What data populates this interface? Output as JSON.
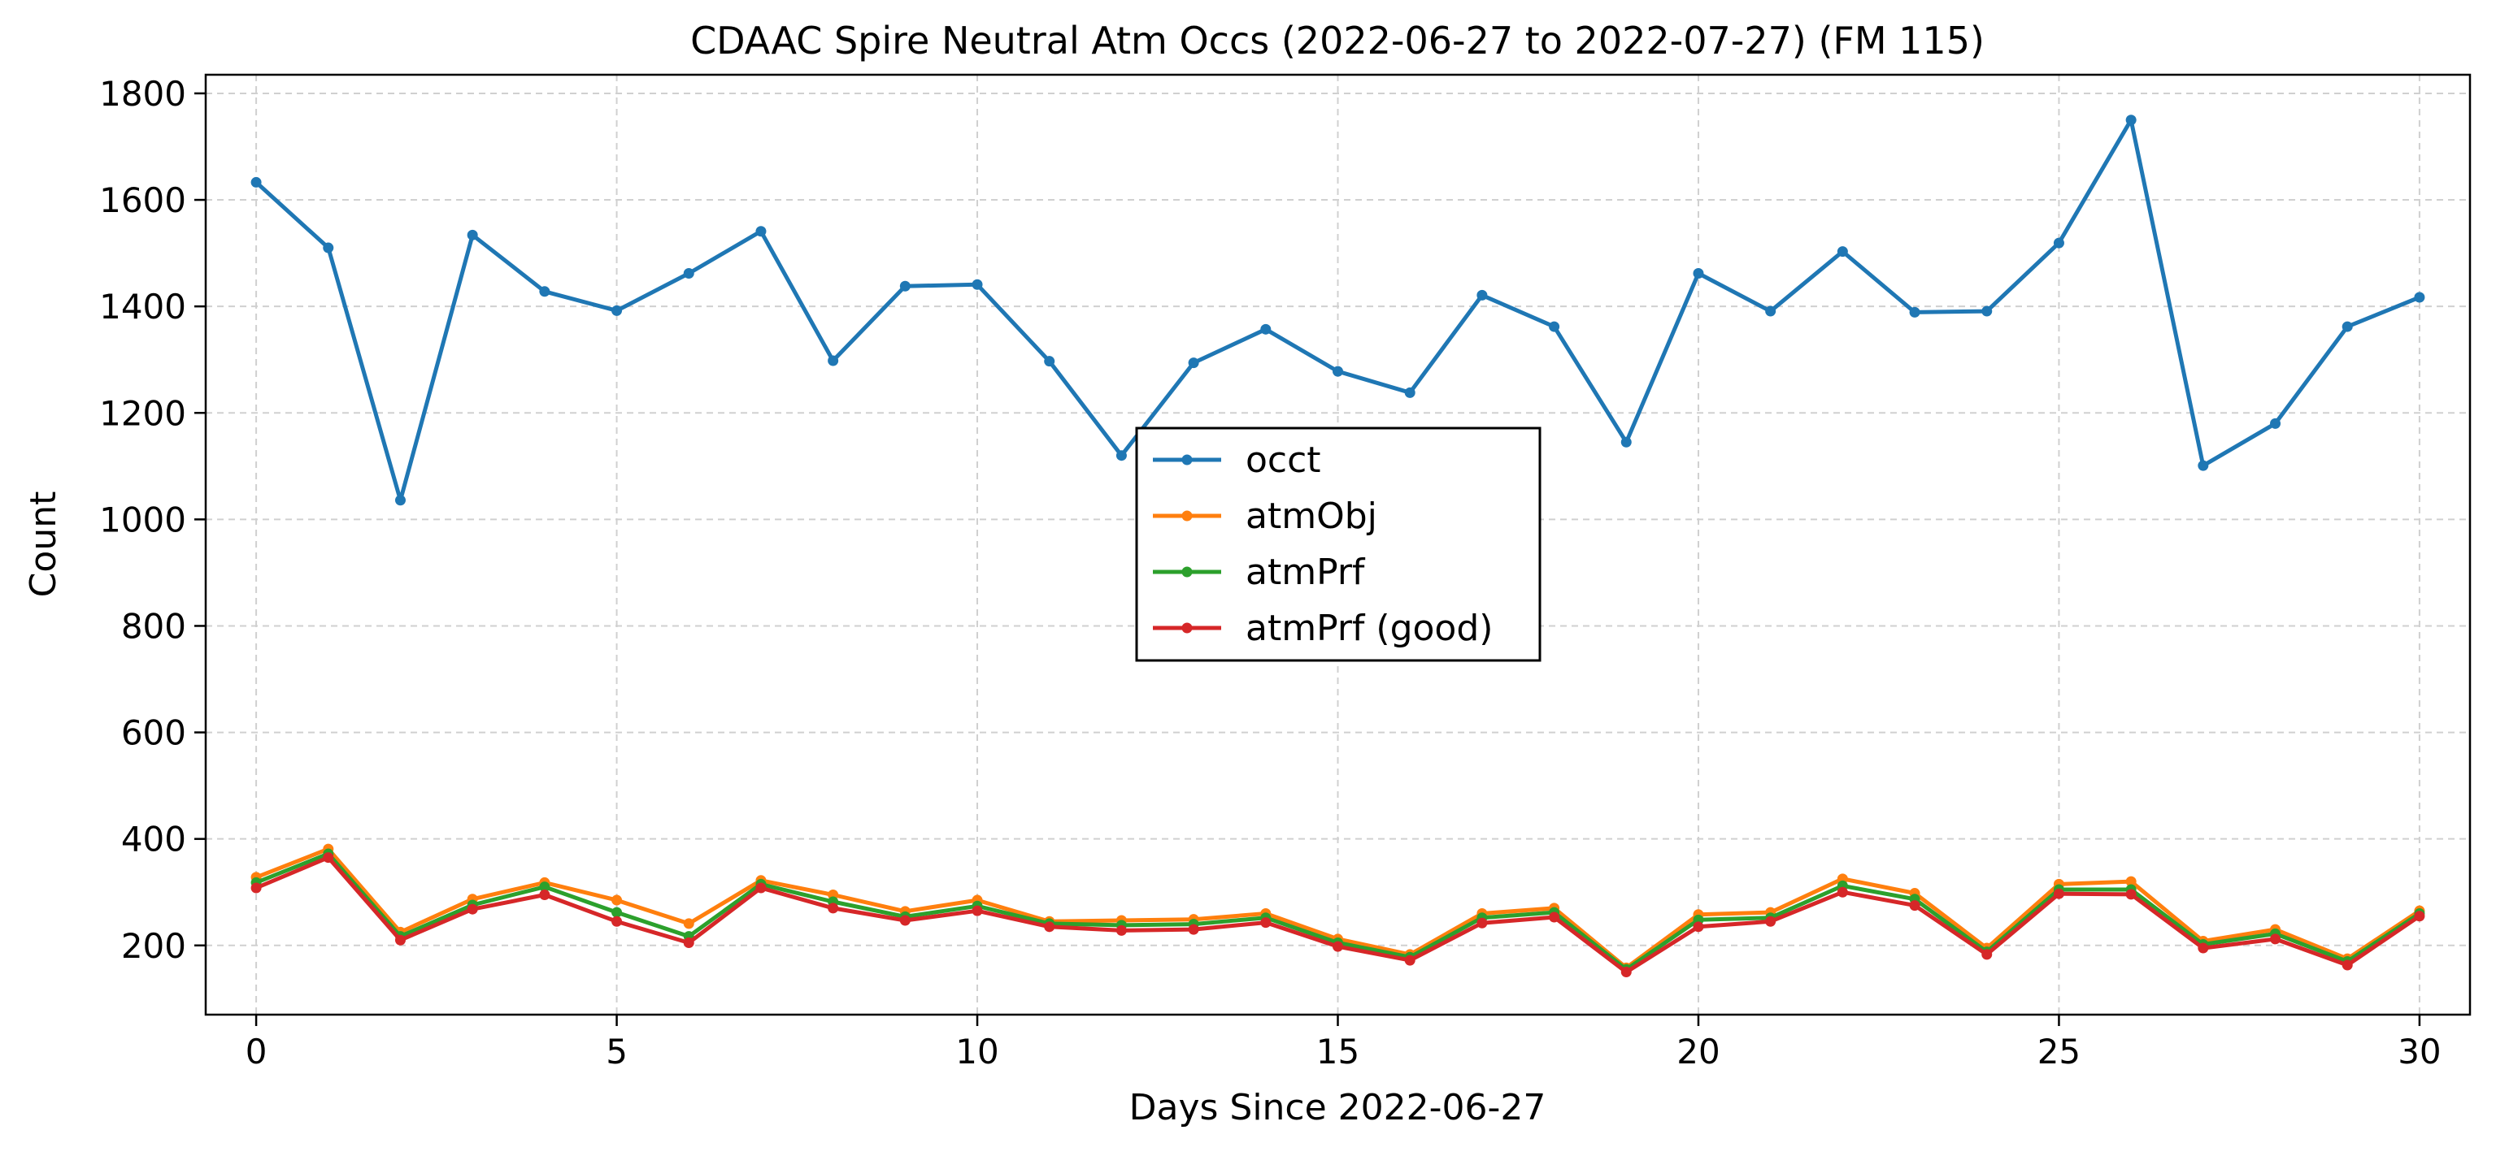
{
  "chart_data": {
    "type": "line",
    "title": "CDAAC Spire Neutral Atm Occs (2022-06-27 to 2022-07-27) (FM 115)",
    "xlabel": "Days Since 2022-06-27",
    "ylabel": "Count",
    "xlim": [
      -0.7,
      30.7
    ],
    "ylim": [
      70,
      1835
    ],
    "xticks": [
      0,
      5,
      10,
      15,
      20,
      25,
      30
    ],
    "yticks": [
      200,
      400,
      600,
      800,
      1000,
      1200,
      1400,
      1600,
      1800
    ],
    "grid": true,
    "legend_position": "center",
    "x": [
      0,
      1,
      2,
      3,
      4,
      5,
      6,
      7,
      8,
      9,
      10,
      11,
      12,
      13,
      14,
      15,
      16,
      17,
      18,
      19,
      20,
      21,
      22,
      23,
      24,
      25,
      26,
      27,
      28,
      29,
      30
    ],
    "series": [
      {
        "name": "occt",
        "color": "#1f77b4",
        "values": [
          1633,
          1510,
          1036,
          1534,
          1428,
          1392,
          1462,
          1541,
          1298,
          1438,
          1441,
          1297,
          1120,
          1294,
          1357,
          1278,
          1238,
          1421,
          1362,
          1145,
          1462,
          1391,
          1503,
          1389,
          1391,
          1519,
          1750,
          1101,
          1180,
          1362,
          1417
        ]
      },
      {
        "name": "atmObj",
        "color": "#ff7f0e",
        "values": [
          328,
          381,
          225,
          287,
          318,
          285,
          241,
          322,
          295,
          264,
          285,
          245,
          247,
          249,
          260,
          212,
          183,
          260,
          270,
          158,
          258,
          262,
          325,
          298,
          195,
          315,
          320,
          208,
          230,
          175,
          265
        ]
      },
      {
        "name": "atmPrf",
        "color": "#2ca02c",
        "values": [
          318,
          372,
          217,
          276,
          310,
          262,
          217,
          315,
          282,
          254,
          274,
          241,
          238,
          240,
          252,
          205,
          178,
          252,
          262,
          155,
          248,
          252,
          312,
          287,
          188,
          305,
          305,
          202,
          222,
          170,
          260
        ]
      },
      {
        "name": "atmPrf (good)",
        "color": "#d62728",
        "values": [
          308,
          365,
          210,
          268,
          295,
          245,
          205,
          308,
          270,
          247,
          265,
          235,
          228,
          230,
          243,
          198,
          172,
          242,
          253,
          150,
          235,
          245,
          300,
          275,
          183,
          297,
          296,
          195,
          212,
          163,
          255
        ]
      }
    ]
  }
}
